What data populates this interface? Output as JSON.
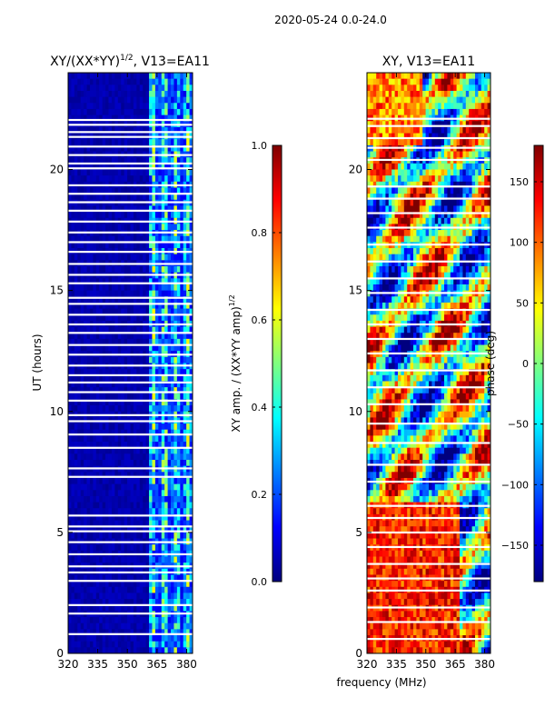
{
  "figure": {
    "suptitle": "2020-05-24 0.0-24.0",
    "shared_xlabel": "frequency (MHz)"
  },
  "chart_data": [
    {
      "type": "heatmap",
      "title_main": "XY/(XX*YY)",
      "title_exp": "1/2",
      "title_tail": ", V13=EA11",
      "xlabel": "",
      "ylabel": "UT (hours)",
      "xlim": [
        320,
        383
      ],
      "ylim": [
        0,
        24
      ],
      "x_ticks": [
        320,
        335,
        350,
        365,
        380
      ],
      "y_ticks": [
        0,
        5,
        10,
        15,
        20
      ],
      "gaps_hours": [
        0.8,
        1.65,
        2.0,
        3.0,
        3.35,
        3.6,
        4.1,
        4.6,
        5.05,
        5.25,
        5.7,
        7.3,
        7.65,
        8.5,
        9.05,
        9.6,
        9.85,
        10.45,
        10.8,
        11.2,
        11.5,
        11.9,
        12.35,
        12.75,
        13.25,
        13.6,
        14.0,
        14.45,
        14.7,
        15.3,
        15.65,
        16.1,
        16.6,
        17.0,
        17.4,
        17.85,
        18.3,
        18.65,
        19.0,
        19.35,
        20.05,
        20.25,
        20.6,
        20.95,
        21.35,
        21.55,
        21.85,
        22.05
      ],
      "colorbar": {
        "label_main": "XY amp. / (XX*YY amp)",
        "label_exp": "1/2",
        "range": [
          0.0,
          1.0
        ],
        "ticks": [
          "0.0",
          "0.2",
          "0.4",
          "0.6",
          "0.8",
          "1.0"
        ],
        "tick_values": [
          0.0,
          0.2,
          0.4,
          0.6,
          0.8,
          1.0
        ]
      }
    },
    {
      "type": "heatmap",
      "title_main": "XY, V13=EA11",
      "xlabel": "",
      "ylabel": "",
      "xlim": [
        320,
        383
      ],
      "ylim": [
        0,
        24
      ],
      "x_ticks": [
        320,
        335,
        350,
        365,
        380
      ],
      "y_ticks": [
        0,
        5,
        10,
        15,
        20
      ],
      "gaps_hours": [
        0.6,
        1.3,
        1.9,
        2.6,
        3.1,
        3.7,
        4.4,
        5.0,
        5.6,
        6.1,
        7.1,
        7.8,
        8.7,
        9.5,
        10.3,
        11.0,
        11.7,
        12.4,
        13.0,
        13.6,
        14.2,
        14.9,
        15.5,
        16.2,
        16.9,
        17.6,
        18.2,
        18.8,
        19.3,
        20.4,
        20.9,
        21.3,
        21.8,
        22.1
      ],
      "colorbar": {
        "label_main": "phase (deg)",
        "range": [
          -180,
          180
        ],
        "ticks": [
          "150",
          "100",
          "50",
          "0",
          "−50",
          "−100",
          "−150"
        ],
        "tick_values": [
          150,
          100,
          50,
          0,
          -50,
          -100,
          -150
        ]
      }
    }
  ],
  "colors": {
    "jet_stops": [
      "#00007f",
      "#0000ff",
      "#007fff",
      "#00ffff",
      "#7fff7f",
      "#ffff00",
      "#ff7f00",
      "#ff0000",
      "#7f0000"
    ],
    "axis": "#000000",
    "gap": "#ffffff"
  }
}
